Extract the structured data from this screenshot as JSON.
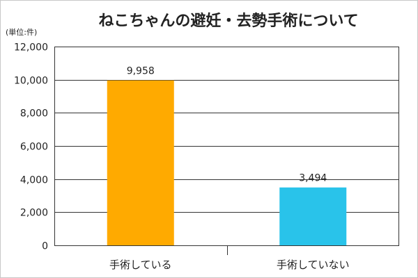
{
  "chart_data": {
    "type": "bar",
    "title": "ねこちゃんの避妊・去勢手術について",
    "unit_label": "(単位:件)",
    "categories": [
      "手術している",
      "手術していない"
    ],
    "values": [
      9958,
      3494
    ],
    "data_labels": [
      "9,958",
      "3,494"
    ],
    "bar_colors": [
      "#ffaa00",
      "#29c3ea"
    ],
    "ylim": [
      0,
      12000
    ],
    "yticks": [
      0,
      2000,
      4000,
      6000,
      8000,
      10000,
      12000
    ],
    "ytick_labels": [
      "0",
      "2,000",
      "4,000",
      "6,000",
      "8,000",
      "10,000",
      "12,000"
    ],
    "grid": true,
    "legend": "none"
  }
}
